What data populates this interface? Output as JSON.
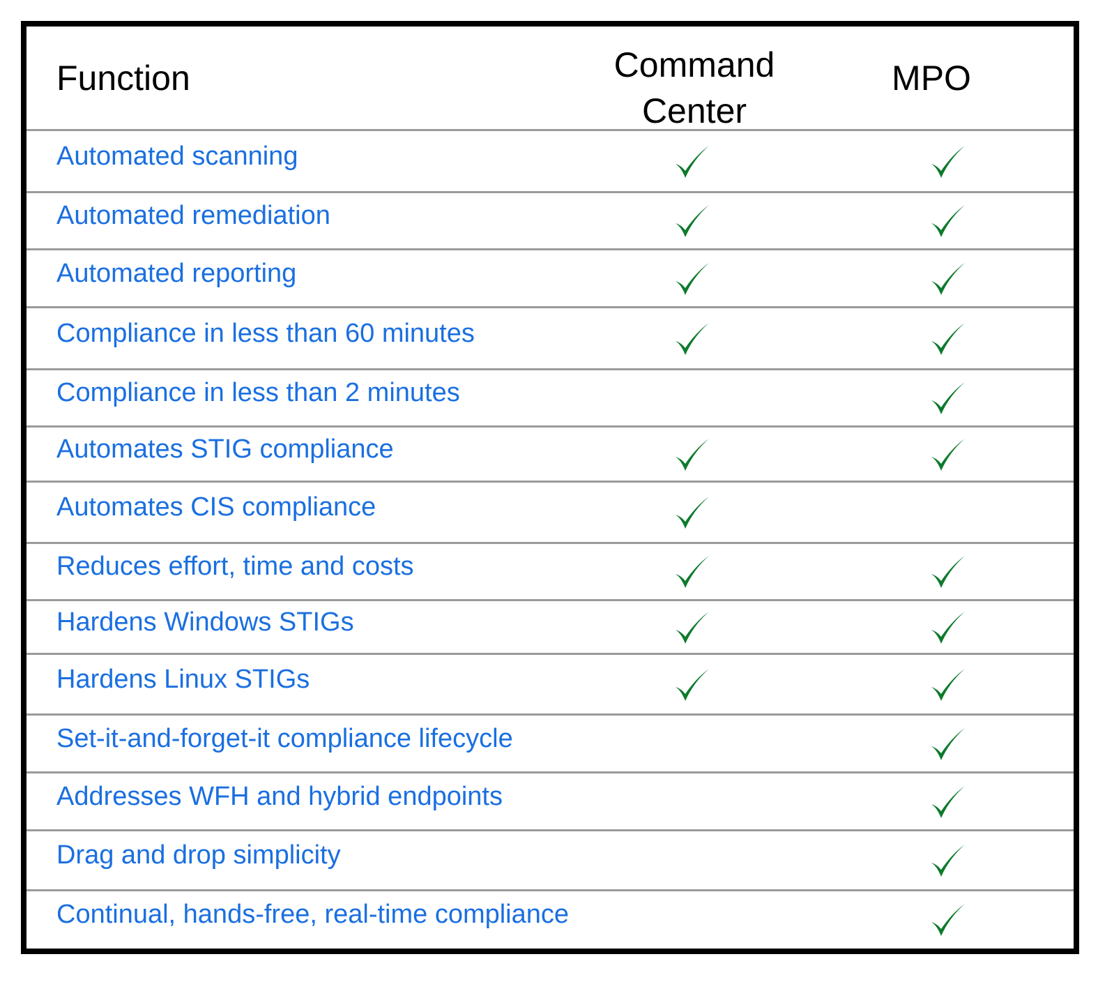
{
  "table": {
    "header": [
      "Function",
      "Command Center",
      "MPO"
    ],
    "rows": [
      {
        "label": "Automated scanning",
        "command_center": true,
        "mpo": true
      },
      {
        "label": "Automated remediation",
        "command_center": true,
        "mpo": true
      },
      {
        "label": "Automated reporting",
        "command_center": true,
        "mpo": true
      },
      {
        "label": "Compliance in less than 60 minutes",
        "command_center": true,
        "mpo": true
      },
      {
        "label": "Compliance in less than 2 minutes",
        "command_center": false,
        "mpo": true
      },
      {
        "label": "Automates STIG compliance",
        "command_center": true,
        "mpo": true
      },
      {
        "label": "Automates CIS compliance",
        "command_center": true,
        "mpo": false
      },
      {
        "label": "Reduces effort, time and costs",
        "command_center": true,
        "mpo": true
      },
      {
        "label": "Hardens Windows STIGs",
        "command_center": true,
        "mpo": true
      },
      {
        "label": "Hardens Linux STIGs",
        "command_center": true,
        "mpo": true
      },
      {
        "label": "Set-it-and-forget-it compliance lifecycle",
        "command_center": false,
        "mpo": true
      },
      {
        "label": "Addresses WFH and hybrid endpoints",
        "command_center": false,
        "mpo": true
      },
      {
        "label": "Drag and drop simplicity",
        "command_center": false,
        "mpo": true
      },
      {
        "label": "Continual, hands-free, real-time compliance",
        "command_center": false,
        "mpo": true
      }
    ]
  }
}
